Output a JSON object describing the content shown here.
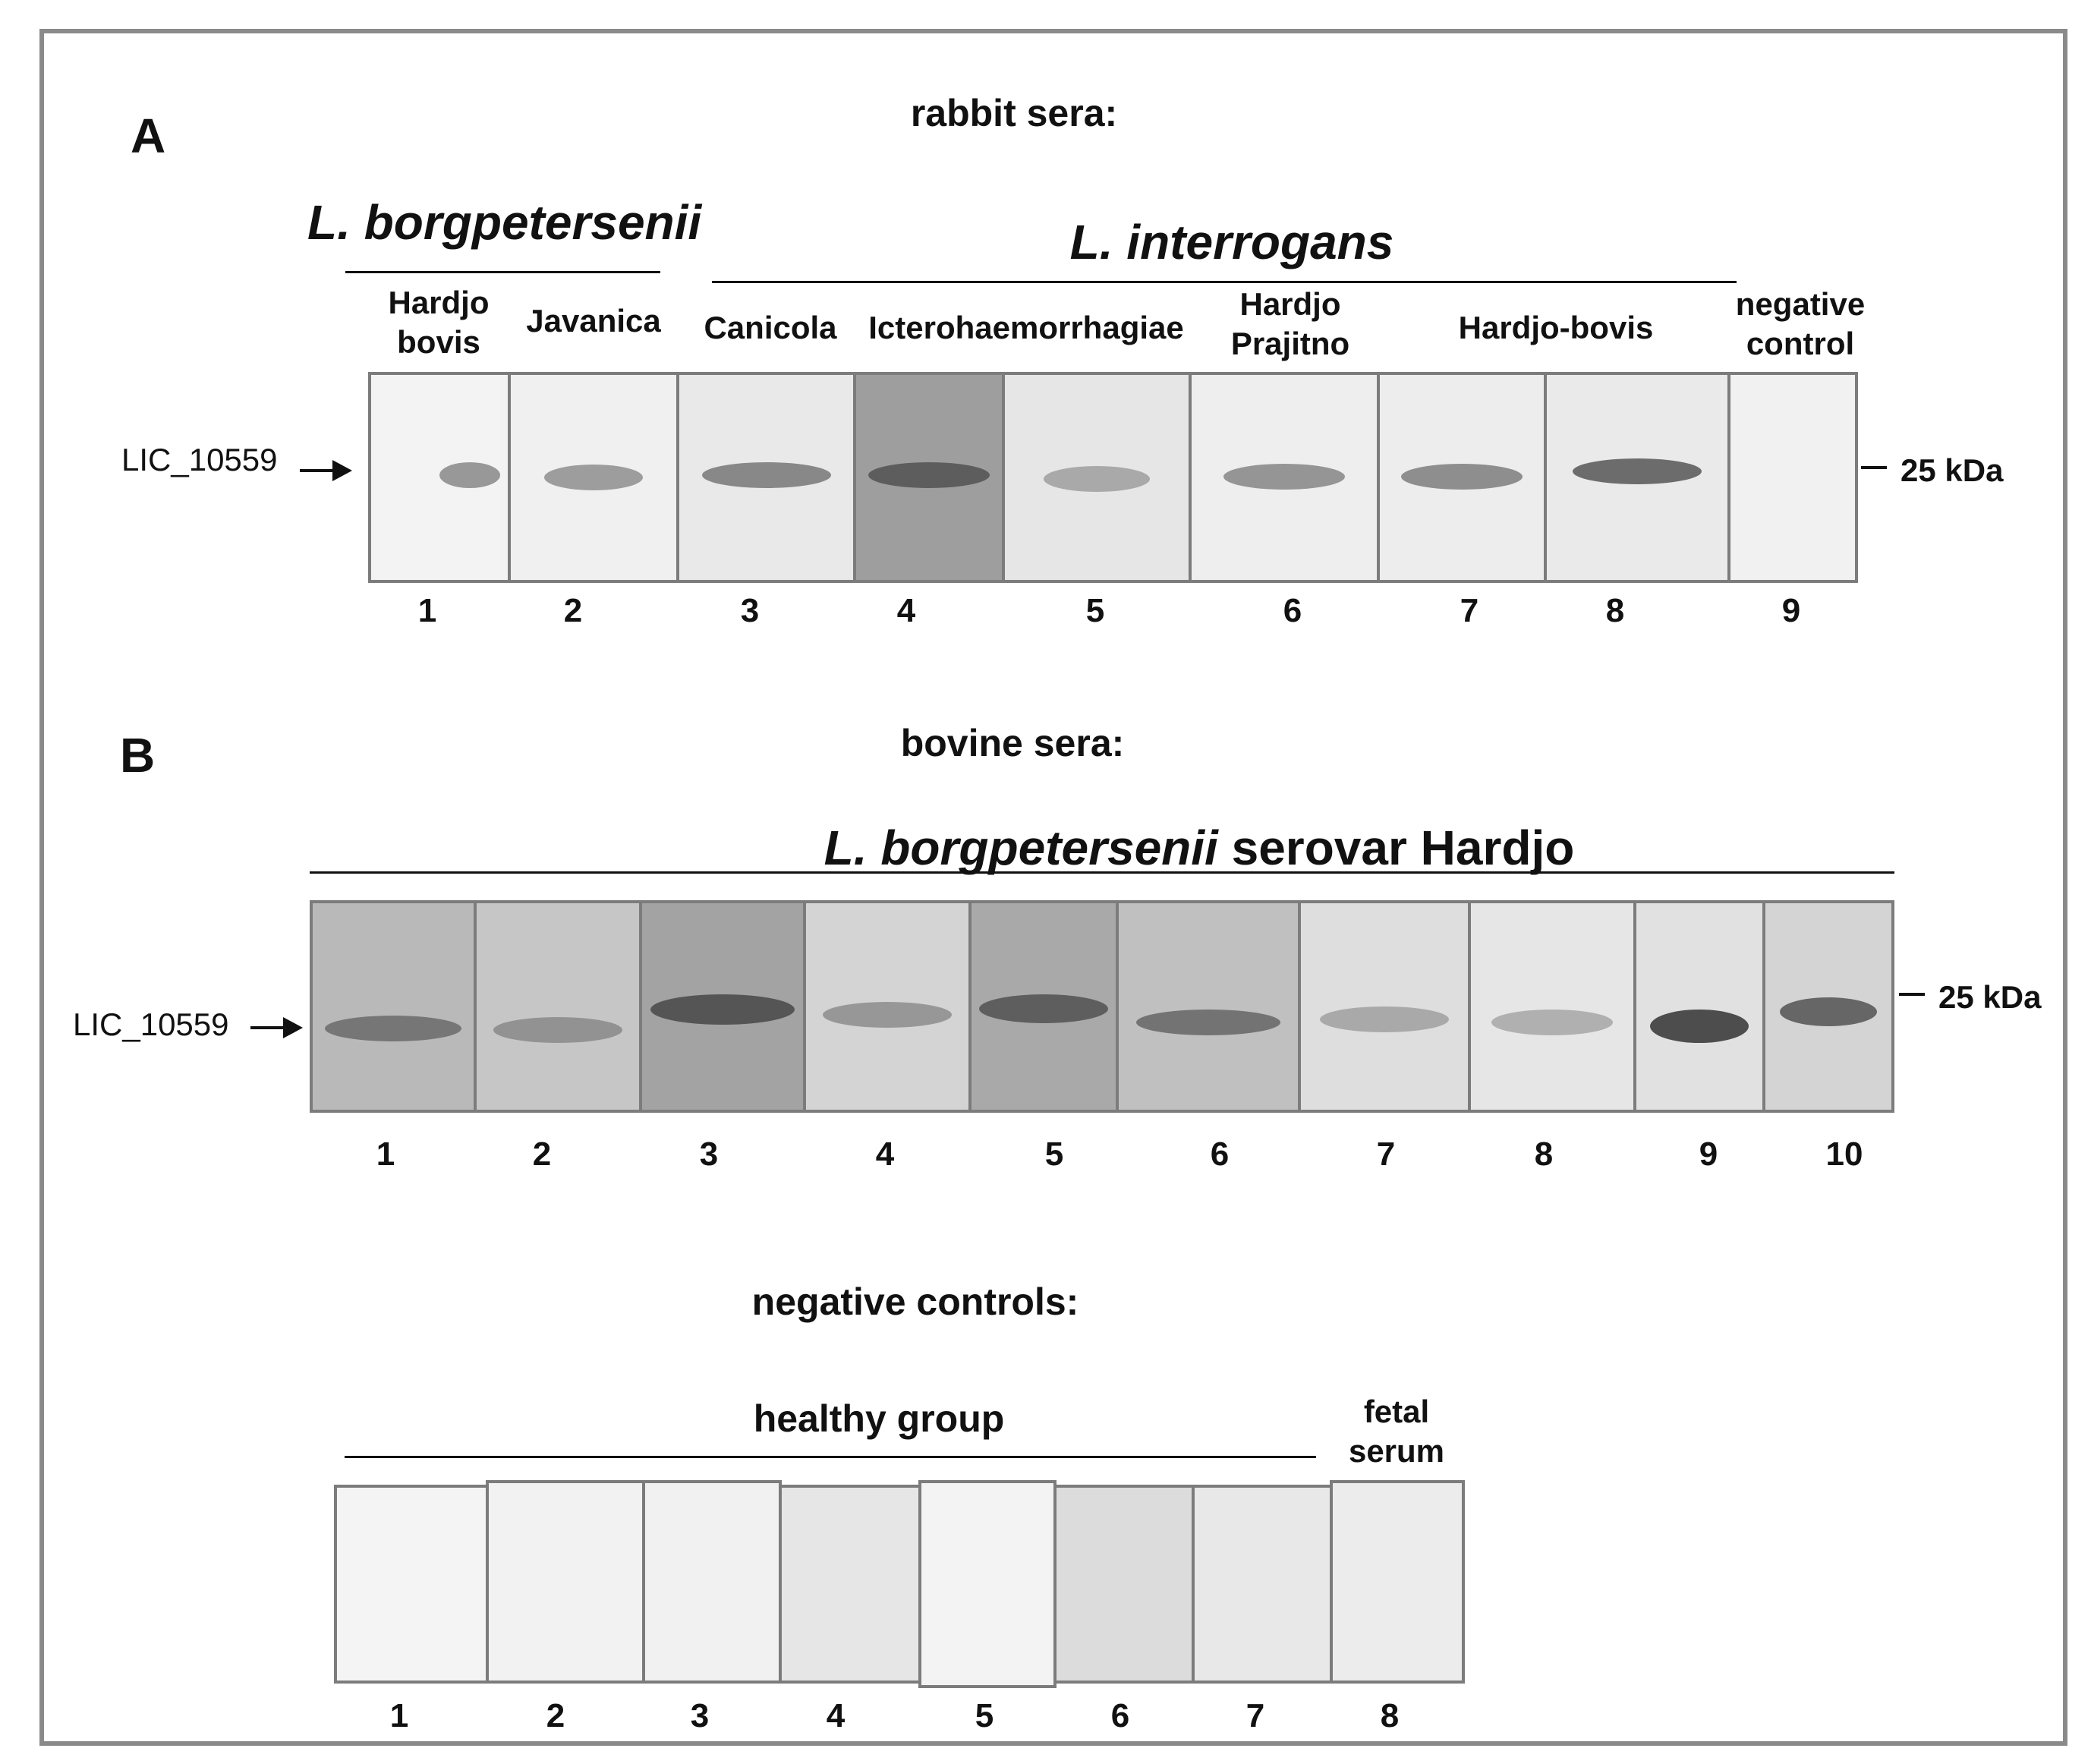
{
  "panelA": {
    "letter": "A",
    "title": "rabbit sera:",
    "species1": "L. borgpetersenii",
    "species2": "L. interrogans",
    "serovars": [
      "Hardjo bovis",
      "Javanica",
      "Canicola",
      "Icterohaemorrhagiae",
      "Hardjo Prajitno",
      "Hardjo-bovis",
      "negative control"
    ],
    "protein_label": "LIC_10559",
    "mw_label": "25 kDa",
    "lane_numbers": [
      "1",
      "2",
      "3",
      "4",
      "5",
      "6",
      "7",
      "8",
      "9"
    ]
  },
  "panelB": {
    "letter": "B",
    "title": "bovine sera:",
    "species": "L. borgpetersenii",
    "serovar_text": " serovar Hardjo",
    "protein_label": "LIC_10559",
    "mw_label": "25 kDa",
    "lane_numbers": [
      "1",
      "2",
      "3",
      "4",
      "5",
      "6",
      "7",
      "8",
      "9",
      "10"
    ]
  },
  "negative": {
    "title": "negative controls:",
    "healthy_label": "healthy group",
    "fetal_label_1": "fetal",
    "fetal_label_2": "serum",
    "lane_numbers": [
      "1",
      "2",
      "3",
      "4",
      "5",
      "6",
      "7",
      "8"
    ]
  }
}
